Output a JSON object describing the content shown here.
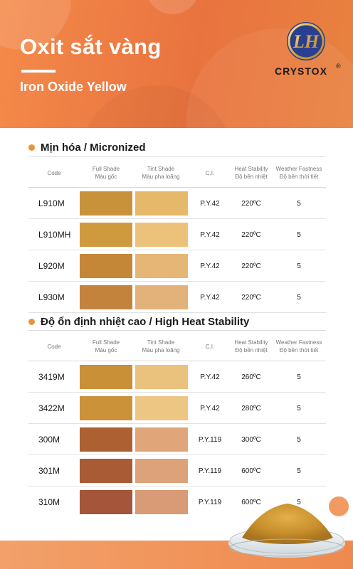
{
  "header": {
    "title_vn": "Oxit sắt vàng",
    "title_en": "Iron Oxide Yellow",
    "logo_letters": "LH",
    "brand": "CRYSTOX",
    "registered": "®"
  },
  "columns": {
    "code": "Code",
    "full_shade_en": "Full Shade",
    "full_shade_vn": "Màu gốc",
    "tint_shade_en": "Tint Shade",
    "tint_shade_vn": "Màu pha loãng",
    "ci": "C.I.",
    "heat_en": "Heat Stability",
    "heat_vn": "Độ bền nhiệt",
    "weather_en": "Weather Fastness",
    "weather_vn": "Độ bền thời tiết"
  },
  "sections": [
    {
      "title": "Mịn hóa /  Micronized",
      "rows": [
        {
          "code": "L910M",
          "ci": "P.Y.42",
          "heat": "220ºC",
          "weather": "5",
          "full_color": "#c8923a",
          "tint_color": "#e6b86a"
        },
        {
          "code": "L910MH",
          "ci": "P.Y.42",
          "heat": "220ºC",
          "weather": "5",
          "full_color": "#cf9a3e",
          "tint_color": "#ecc27a"
        },
        {
          "code": "L920M",
          "ci": "P.Y.42",
          "heat": "220ºC",
          "weather": "5",
          "full_color": "#c48738",
          "tint_color": "#e6b676"
        },
        {
          "code": "L930M",
          "ci": "P.Y.42",
          "heat": "220ºC",
          "weather": "5",
          "full_color": "#c3833d",
          "tint_color": "#e3b27a"
        }
      ]
    },
    {
      "title": "Độ ổn định nhiệt cao / High Heat Stability",
      "rows": [
        {
          "code": "3419M",
          "ci": "P.Y.42",
          "heat": "260ºC",
          "weather": "5",
          "full_color": "#c99038",
          "tint_color": "#ebc17e"
        },
        {
          "code": "3422M",
          "ci": "P.Y.42",
          "heat": "280ºC",
          "weather": "5",
          "full_color": "#cb923a",
          "tint_color": "#edc684"
        },
        {
          "code": "300M",
          "ci": "P.Y.119",
          "heat": "300ºC",
          "weather": "5",
          "full_color": "#ad6133",
          "tint_color": "#e0a67a"
        },
        {
          "code": "301M",
          "ci": "P.Y.119",
          "heat": "600ºC",
          "weather": "5",
          "full_color": "#a95b35",
          "tint_color": "#dea27a"
        },
        {
          "code": "310M",
          "ci": "P.Y.119",
          "heat": "600ºC",
          "weather": "5",
          "full_color": "#a5553a",
          "tint_color": "#d99a76"
        }
      ]
    }
  ]
}
